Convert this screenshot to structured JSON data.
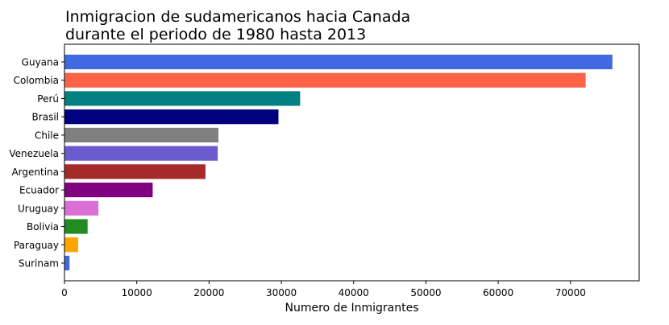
{
  "chart_data": {
    "type": "bar",
    "orientation": "horizontal",
    "title_lines": [
      "Inmigracion de sudamericanos hacia Canada",
      "durante el periodo de 1980 hasta 2013"
    ],
    "xlabel": "Numero de Inmigrantes",
    "ylabel": "",
    "xlim": [
      0,
      79500
    ],
    "x_ticks": [
      0,
      10000,
      20000,
      30000,
      40000,
      50000,
      60000,
      70000
    ],
    "grid": false,
    "categories": [
      "Guyana",
      "Colombia",
      "Perú",
      "Brasil",
      "Chile",
      "Venezuela",
      "Argentina",
      "Ecuador",
      "Uruguay",
      "Bolivia",
      "Paraguay",
      "Surinam"
    ],
    "values": [
      75800,
      72100,
      32600,
      29600,
      21300,
      21200,
      19500,
      12200,
      4700,
      3200,
      1900,
      700
    ],
    "colors": [
      "#4169e1",
      "#ff6347",
      "#008080",
      "#000080",
      "#808080",
      "#6a5acd",
      "#a52a2a",
      "#800080",
      "#da70d6",
      "#228b22",
      "#ffa500",
      "#4169e1"
    ]
  }
}
